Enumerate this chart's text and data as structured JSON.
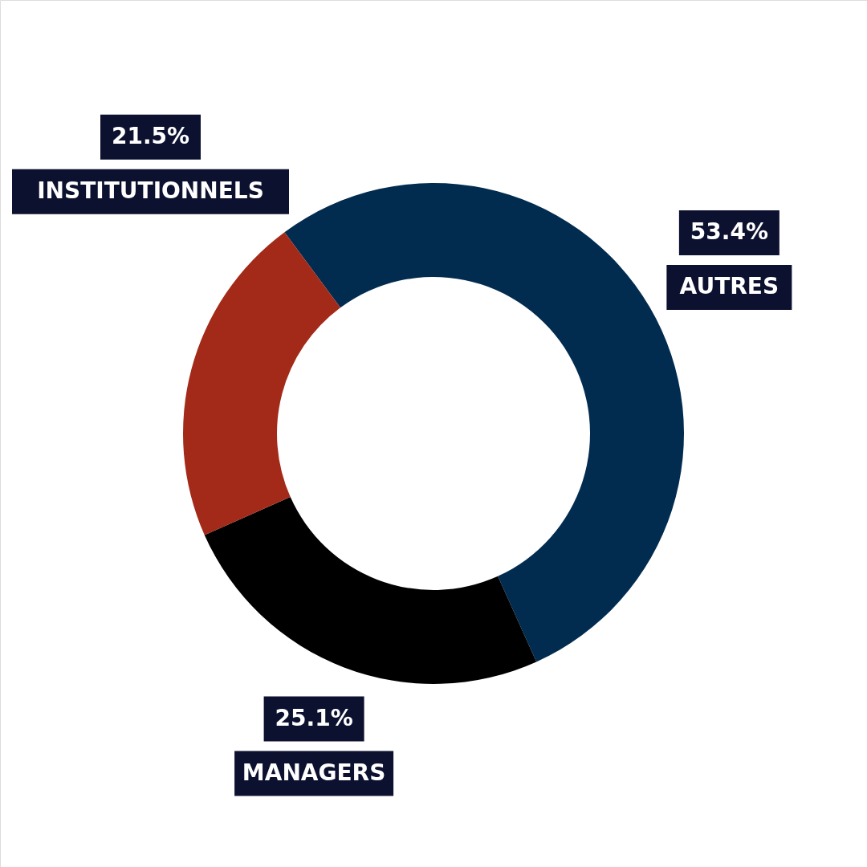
{
  "chart_data": {
    "type": "donut",
    "categories": [
      "AUTRES",
      "MANAGERS",
      "INSTITUTIONNELS"
    ],
    "values": [
      53.4,
      25.1,
      21.5
    ],
    "colors": [
      "#022c4f",
      "#000000",
      "#a32a18"
    ],
    "value_labels": [
      "53.4%",
      "25.1%",
      "21.5%"
    ]
  }
}
